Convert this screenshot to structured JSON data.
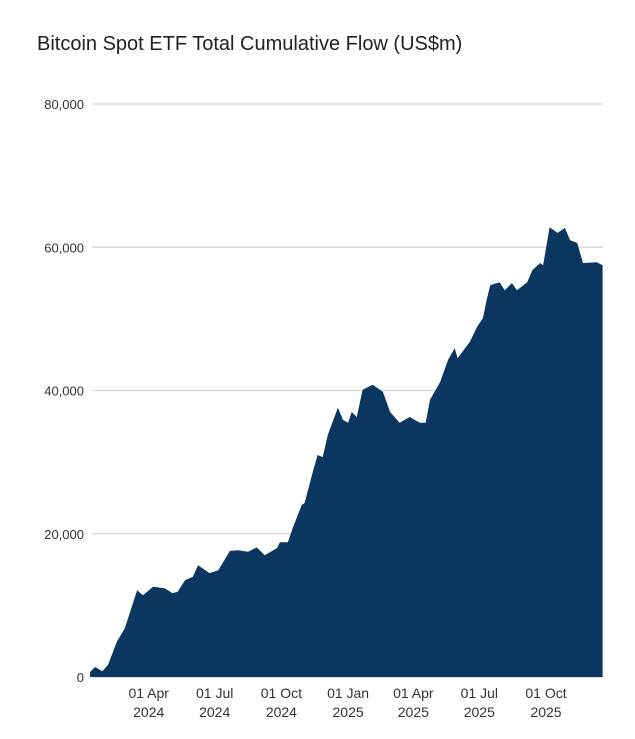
{
  "chart_data": {
    "type": "area",
    "title": "Bitcoin Spot ETF Total Cumulative Flow (US$m)",
    "xlabel": "",
    "ylabel": "",
    "ylim": [
      0,
      80000
    ],
    "yticks": [
      0,
      20000,
      40000,
      60000,
      80000
    ],
    "ytick_labels": [
      "0",
      "20,000",
      "40,000",
      "60,000",
      "80,000"
    ],
    "xticks": [
      "2024-04-01",
      "2024-07-01",
      "2024-10-01",
      "2025-01-01",
      "2025-04-01",
      "2025-07-01",
      "2025-10-01"
    ],
    "xtick_labels": [
      [
        "01 Apr",
        "2024"
      ],
      [
        "01 Jul",
        "2024"
      ],
      [
        "01 Oct",
        "2024"
      ],
      [
        "01 Jan",
        "2025"
      ],
      [
        "01 Apr",
        "2025"
      ],
      [
        "01 Jul",
        "2025"
      ],
      [
        "01 Oct",
        "2025"
      ]
    ],
    "xlim": [
      "2024-01-11",
      "2025-12-18"
    ],
    "grid": "horizontal",
    "color": "#0b365f",
    "grid_color": "#d4d4d4",
    "series": [
      {
        "x": [
          "2024-01-11",
          "2024-01-14",
          "2024-01-18",
          "2024-01-28",
          "2024-02-05",
          "2024-02-17",
          "2024-02-28",
          "2024-03-16",
          "2024-03-24",
          "2024-04-07",
          "2024-04-23",
          "2024-05-04",
          "2024-05-11",
          "2024-05-21",
          "2024-06-01",
          "2024-06-08",
          "2024-06-24",
          "2024-07-06",
          "2024-07-22",
          "2024-08-02",
          "2024-08-16",
          "2024-08-28",
          "2024-09-08",
          "2024-09-25",
          "2024-09-29",
          "2024-10-10",
          "2024-10-17",
          "2024-10-29",
          "2024-11-02",
          "2024-11-14",
          "2024-11-20",
          "2024-11-27",
          "2024-12-04",
          "2024-12-18",
          "2024-12-25",
          "2025-01-01",
          "2025-01-06",
          "2025-01-13",
          "2025-01-21",
          "2025-02-04",
          "2025-02-18",
          "2025-02-28",
          "2025-03-13",
          "2025-03-27",
          "2025-04-10",
          "2025-04-18",
          "2025-04-24",
          "2025-05-08",
          "2025-05-19",
          "2025-05-28",
          "2025-06-01",
          "2025-06-18",
          "2025-06-28",
          "2025-07-06",
          "2025-07-11",
          "2025-07-16",
          "2025-07-29",
          "2025-08-05",
          "2025-08-15",
          "2025-08-22",
          "2025-09-05",
          "2025-09-12",
          "2025-09-23",
          "2025-09-27",
          "2025-10-06",
          "2025-10-17",
          "2025-10-27",
          "2025-11-03",
          "2025-11-13",
          "2025-11-21",
          "2025-12-10",
          "2025-12-18"
        ],
        "y": [
          700,
          1000,
          1400,
          800,
          1700,
          4900,
          6800,
          12100,
          11400,
          12600,
          12400,
          11700,
          11900,
          13500,
          14000,
          15600,
          14500,
          14900,
          17600,
          17700,
          17500,
          18100,
          17000,
          18000,
          18800,
          18800,
          20900,
          24000,
          24300,
          28900,
          31000,
          30700,
          33800,
          37600,
          35900,
          35500,
          37000,
          36300,
          40100,
          40800,
          39800,
          37000,
          35500,
          36300,
          35500,
          35500,
          38700,
          41200,
          44300,
          45900,
          44500,
          46800,
          48900,
          50100,
          52600,
          54700,
          55100,
          54000,
          55000,
          54000,
          55100,
          56800,
          57800,
          57500,
          62800,
          62000,
          62700,
          61000,
          60600,
          57800,
          57900,
          57500
        ]
      }
    ]
  }
}
